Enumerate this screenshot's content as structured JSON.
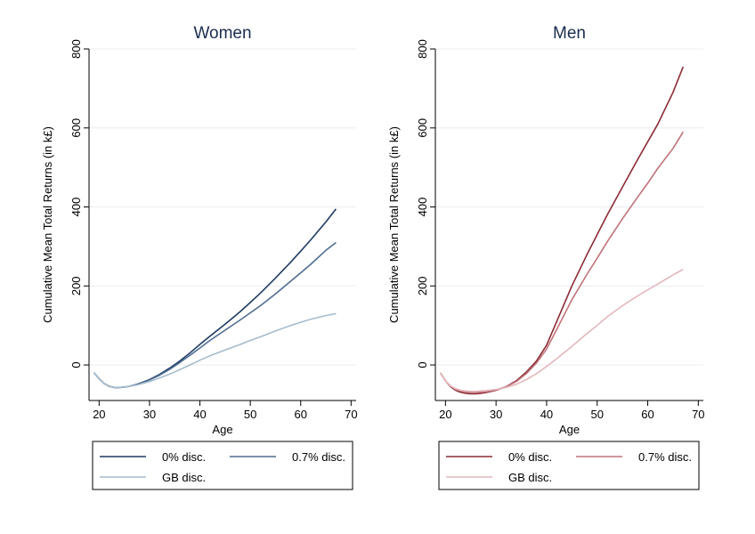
{
  "chart_data": [
    {
      "type": "line",
      "title": "Women",
      "xlabel": "Age",
      "ylabel": "Cumulative Mean Total Returns (in k£)",
      "xlim": [
        18,
        71
      ],
      "ylim": [
        -90,
        800
      ],
      "xticks": [
        20,
        30,
        40,
        50,
        60,
        70
      ],
      "yticks": [
        0,
        200,
        400,
        600,
        800
      ],
      "grid": true,
      "legend": "bottom",
      "series": [
        {
          "name": "0% disc.",
          "color": "#1f3b63",
          "x": [
            19,
            20,
            21,
            22,
            23,
            24,
            25,
            26,
            27,
            28,
            30,
            32,
            34,
            36,
            38,
            40,
            42,
            45,
            48,
            50,
            52,
            55,
            58,
            60,
            62,
            65,
            67
          ],
          "y": [
            -20,
            -35,
            -47,
            -54,
            -57,
            -57,
            -56,
            -54,
            -51,
            -47,
            -37,
            -24,
            -8,
            10,
            30,
            52,
            73,
            103,
            135,
            158,
            182,
            220,
            260,
            288,
            317,
            362,
            395
          ]
        },
        {
          "name": "0.7% disc.",
          "color": "#4f6d90",
          "x": [
            19,
            20,
            21,
            22,
            23,
            24,
            25,
            26,
            27,
            28,
            30,
            32,
            34,
            36,
            38,
            40,
            42,
            45,
            48,
            50,
            52,
            55,
            58,
            60,
            62,
            65,
            67
          ],
          "y": [
            -20,
            -35,
            -47,
            -54,
            -57,
            -57,
            -56,
            -54,
            -51,
            -48,
            -38,
            -26,
            -11,
            6,
            24,
            43,
            62,
            88,
            114,
            132,
            150,
            180,
            212,
            233,
            255,
            290,
            310
          ]
        },
        {
          "name": "GB disc.",
          "color": "#a6bccd",
          "x": [
            19,
            20,
            21,
            22,
            23,
            24,
            25,
            26,
            27,
            28,
            30,
            32,
            34,
            36,
            38,
            40,
            42,
            45,
            48,
            50,
            52,
            55,
            58,
            60,
            62,
            65,
            67
          ],
          "y": [
            -20,
            -35,
            -47,
            -54,
            -57,
            -57,
            -56,
            -54,
            -52,
            -49,
            -42,
            -33,
            -23,
            -12,
            0,
            12,
            23,
            38,
            52,
            62,
            71,
            86,
            100,
            108,
            116,
            125,
            130
          ]
        }
      ]
    },
    {
      "type": "line",
      "title": "Men",
      "xlabel": "Age",
      "ylabel": "Cumulative Mean Total Returns (in k£)",
      "xlim": [
        18,
        71
      ],
      "ylim": [
        -90,
        800
      ],
      "xticks": [
        20,
        30,
        40,
        50,
        60,
        70
      ],
      "yticks": [
        0,
        200,
        400,
        600,
        800
      ],
      "grid": true,
      "legend": "bottom",
      "series": [
        {
          "name": "0% disc.",
          "color": "#8b2b34",
          "x": [
            19,
            20,
            21,
            22,
            23,
            24,
            25,
            26,
            27,
            28,
            30,
            32,
            34,
            36,
            38,
            40,
            42,
            45,
            48,
            50,
            52,
            55,
            58,
            60,
            62,
            65,
            67
          ],
          "y": [
            -20,
            -40,
            -55,
            -64,
            -69,
            -72,
            -73,
            -73,
            -72,
            -70,
            -64,
            -55,
            -40,
            -18,
            10,
            50,
            110,
            200,
            280,
            330,
            380,
            450,
            520,
            565,
            610,
            690,
            755
          ]
        },
        {
          "name": "0.7% disc.",
          "color": "#c0737a",
          "x": [
            19,
            20,
            21,
            22,
            23,
            24,
            25,
            26,
            27,
            28,
            30,
            32,
            34,
            36,
            38,
            40,
            42,
            45,
            48,
            50,
            52,
            55,
            58,
            60,
            62,
            65,
            67
          ],
          "y": [
            -20,
            -40,
            -54,
            -62,
            -66,
            -69,
            -70,
            -70,
            -69,
            -68,
            -63,
            -55,
            -42,
            -22,
            5,
            40,
            90,
            165,
            230,
            270,
            312,
            370,
            425,
            460,
            498,
            548,
            590
          ]
        },
        {
          "name": "GB disc.",
          "color": "#e3b7bc",
          "x": [
            19,
            20,
            21,
            22,
            23,
            24,
            25,
            26,
            27,
            28,
            30,
            32,
            34,
            36,
            38,
            40,
            42,
            45,
            48,
            50,
            52,
            55,
            58,
            60,
            62,
            65,
            67
          ],
          "y": [
            -20,
            -40,
            -53,
            -60,
            -64,
            -66,
            -67,
            -67,
            -66,
            -65,
            -62,
            -57,
            -49,
            -37,
            -22,
            -4,
            16,
            47,
            80,
            100,
            122,
            150,
            175,
            190,
            205,
            228,
            242
          ]
        }
      ]
    }
  ]
}
